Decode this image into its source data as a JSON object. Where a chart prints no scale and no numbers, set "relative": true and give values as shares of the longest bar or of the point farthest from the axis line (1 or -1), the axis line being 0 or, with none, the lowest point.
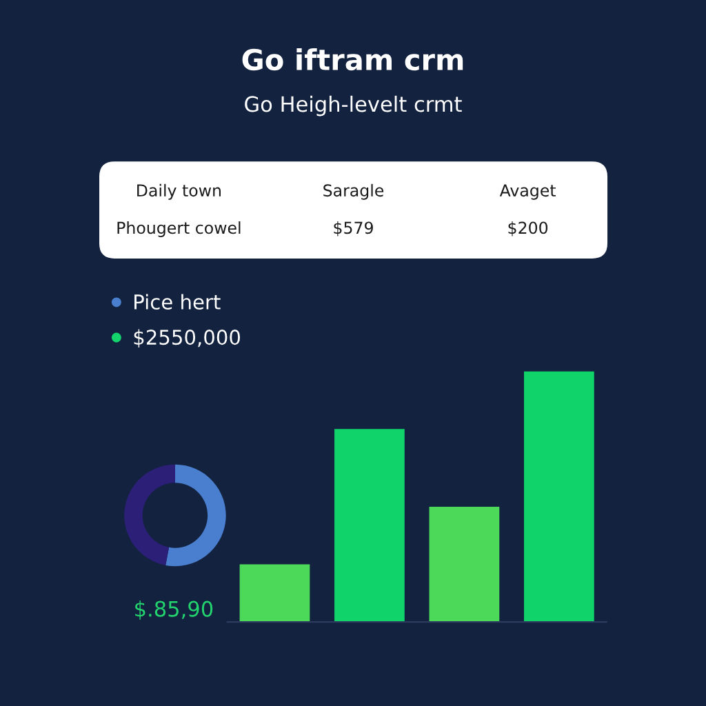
{
  "chart_data": [
    {
      "type": "other",
      "title": "Go iftram crm",
      "subtitle": "Go Heigh-levelt crmt",
      "annotations": [
        "Daily town",
        "Saragle",
        "Avaget",
        "Phougert cowel",
        "$579",
        "$200"
      ]
    },
    {
      "type": "donut",
      "categories": [
        "Pice hert",
        null
      ],
      "values": [
        53,
        47
      ],
      "colors": [
        "#4a7fd0",
        "#2b1f78"
      ],
      "legend": "top left",
      "annotations": [
        "$.85,90"
      ]
    },
    {
      "type": "bar",
      "categories": [
        null,
        null,
        null,
        null
      ],
      "relative": true,
      "legend": "top left",
      "series": [
        {
          "name": "$2550,000",
          "color": "#14d46c",
          "values": [
            0.23,
            0.77,
            0.46,
            1.0
          ],
          "colors": [
            "#4cd95a",
            "#10d46a",
            "#4cd95a",
            "#10d46a"
          ]
        }
      ]
    }
  ]
}
